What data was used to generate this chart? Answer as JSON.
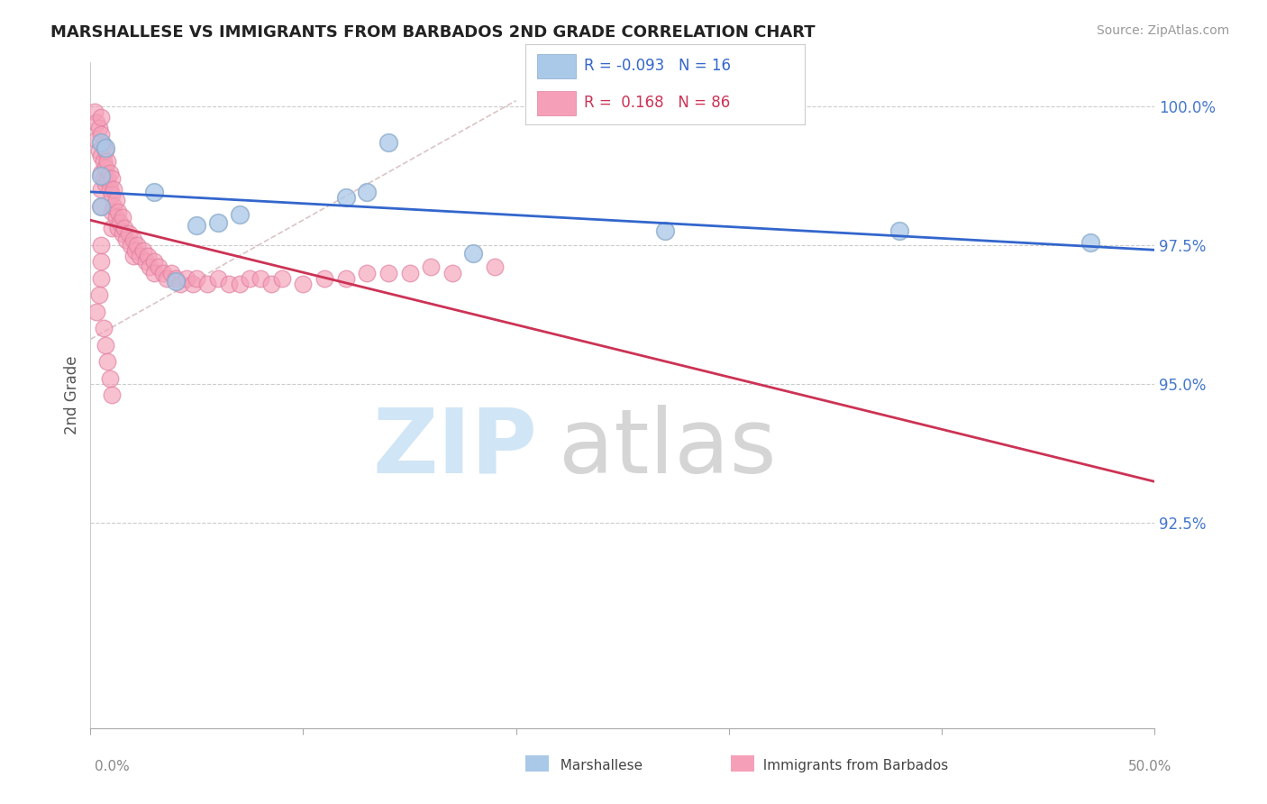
{
  "title": "MARSHALLESE VS IMMIGRANTS FROM BARBADOS 2ND GRADE CORRELATION CHART",
  "source": "Source: ZipAtlas.com",
  "ylabel": "2nd Grade",
  "xmin": 0.0,
  "xmax": 0.5,
  "ymin": 0.888,
  "ymax": 1.008,
  "yticks": [
    0.925,
    0.95,
    0.975,
    1.0
  ],
  "ytick_labels": [
    "92.5%",
    "95.0%",
    "97.5%",
    "100.0%"
  ],
  "blue_R": -0.093,
  "blue_N": 16,
  "pink_R": 0.168,
  "pink_N": 86,
  "blue_color": "#aac8e8",
  "pink_color": "#f5a0b8",
  "blue_edge_color": "#88aacc",
  "pink_edge_color": "#e080a0",
  "blue_line_color": "#3366cc",
  "pink_line_color": "#cc3355",
  "watermark_zip_color": "#d0e5f5",
  "watermark_atlas_color": "#d5d5d5",
  "blue_x": [
    0.005,
    0.007,
    0.14,
    0.03,
    0.05,
    0.07,
    0.12,
    0.13,
    0.27,
    0.38,
    0.47,
    0.005,
    0.04,
    0.18,
    0.005,
    0.06
  ],
  "blue_y": [
    0.9935,
    0.9925,
    0.9935,
    0.9845,
    0.9785,
    0.9805,
    0.9835,
    0.9845,
    0.9775,
    0.9775,
    0.9755,
    0.9875,
    0.9685,
    0.9735,
    0.982,
    0.979
  ],
  "pink_x": [
    0.002,
    0.003,
    0.003,
    0.004,
    0.004,
    0.005,
    0.005,
    0.005,
    0.005,
    0.005,
    0.005,
    0.006,
    0.006,
    0.006,
    0.007,
    0.007,
    0.007,
    0.008,
    0.008,
    0.009,
    0.009,
    0.01,
    0.01,
    0.01,
    0.01,
    0.011,
    0.011,
    0.012,
    0.012,
    0.013,
    0.013,
    0.014,
    0.015,
    0.015,
    0.016,
    0.017,
    0.018,
    0.019,
    0.02,
    0.02,
    0.021,
    0.022,
    0.023,
    0.025,
    0.026,
    0.027,
    0.028,
    0.03,
    0.03,
    0.032,
    0.034,
    0.036,
    0.038,
    0.04,
    0.042,
    0.045,
    0.048,
    0.05,
    0.055,
    0.06,
    0.065,
    0.07,
    0.075,
    0.08,
    0.085,
    0.09,
    0.1,
    0.11,
    0.12,
    0.13,
    0.14,
    0.15,
    0.16,
    0.17,
    0.19,
    0.005,
    0.005,
    0.005,
    0.004,
    0.003,
    0.006,
    0.007,
    0.008,
    0.009,
    0.01
  ],
  "pink_y": [
    0.999,
    0.997,
    0.994,
    0.996,
    0.992,
    0.998,
    0.995,
    0.991,
    0.988,
    0.985,
    0.982,
    0.993,
    0.99,
    0.987,
    0.992,
    0.989,
    0.986,
    0.99,
    0.987,
    0.988,
    0.985,
    0.987,
    0.984,
    0.981,
    0.978,
    0.985,
    0.982,
    0.983,
    0.98,
    0.981,
    0.978,
    0.979,
    0.98,
    0.977,
    0.978,
    0.976,
    0.977,
    0.975,
    0.976,
    0.973,
    0.974,
    0.975,
    0.973,
    0.974,
    0.972,
    0.973,
    0.971,
    0.972,
    0.97,
    0.971,
    0.97,
    0.969,
    0.97,
    0.969,
    0.968,
    0.969,
    0.968,
    0.969,
    0.968,
    0.969,
    0.968,
    0.968,
    0.969,
    0.969,
    0.968,
    0.969,
    0.968,
    0.969,
    0.969,
    0.97,
    0.97,
    0.97,
    0.971,
    0.97,
    0.971,
    0.975,
    0.972,
    0.969,
    0.966,
    0.963,
    0.96,
    0.957,
    0.954,
    0.951,
    0.948
  ]
}
